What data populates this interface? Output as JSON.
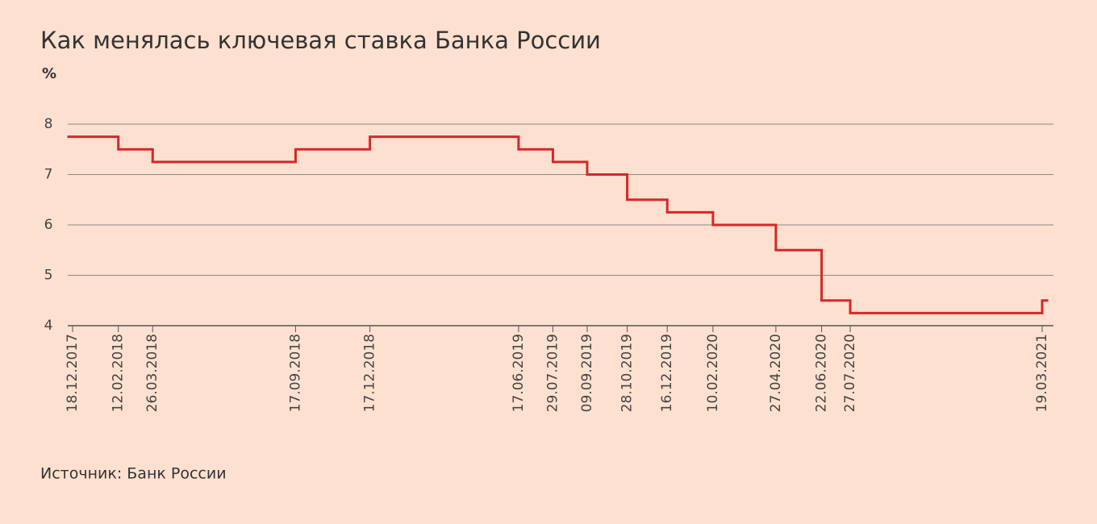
{
  "chart_data": {
    "type": "step",
    "title": "Как менялась ключевая ставка Банка России",
    "subtitle": "%",
    "x": [
      "18.12.2017",
      "12.02.2018",
      "26.03.2018",
      "17.09.2018",
      "17.12.2018",
      "17.06.2019",
      "29.07.2019",
      "09.09.2019",
      "28.10.2019",
      "16.12.2019",
      "10.02.2020",
      "27.04.2020",
      "22.06.2020",
      "27.07.2020",
      "19.03.2021"
    ],
    "values": [
      7.75,
      7.5,
      7.25,
      7.5,
      7.75,
      7.5,
      7.25,
      7,
      6.5,
      6.25,
      6,
      5.5,
      4.5,
      4.25,
      4.5
    ],
    "color": "#d5282a",
    "ylim": [
      4,
      8
    ],
    "yticks": [
      4,
      5,
      6,
      7,
      8
    ],
    "grid": true,
    "source": "Источник: Банк России"
  }
}
